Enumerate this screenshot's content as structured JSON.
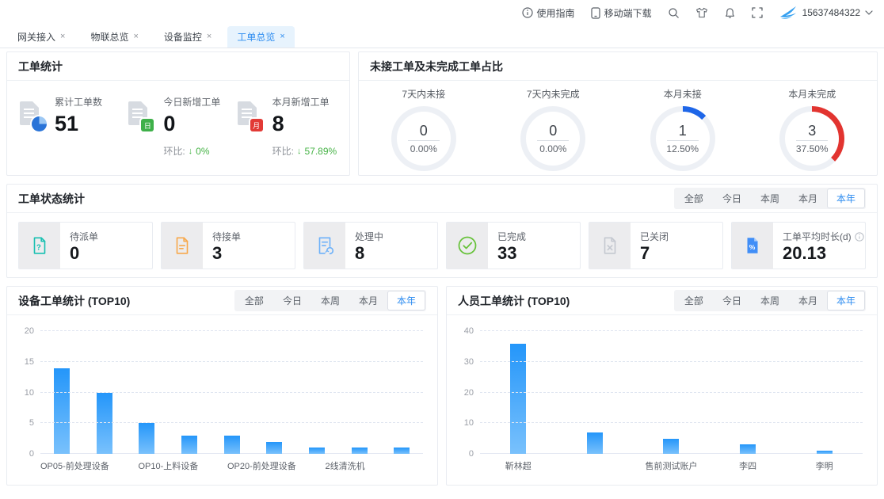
{
  "topbar": {
    "guide_label": "使用指南",
    "download_label": "移动端下载",
    "account": "15637484322",
    "icons": [
      "info-icon",
      "phone-icon",
      "search-icon",
      "theme-shirt-icon",
      "bell-icon",
      "fullscreen-icon",
      "brand-swallow-logo",
      "chevron-down-icon"
    ],
    "brand_color": "#35a0f0"
  },
  "tabbar": {
    "tabs": [
      {
        "label": "网关接入"
      },
      {
        "label": "物联总览"
      },
      {
        "label": "设备监控"
      },
      {
        "label": "工单总览"
      }
    ],
    "active_index": 3,
    "close_glyph": "×"
  },
  "filters": {
    "options": [
      "全部",
      "今日",
      "本周",
      "本月",
      "本年"
    ],
    "active": "本年"
  },
  "work_order_stats": {
    "title": "工单统计",
    "items": [
      {
        "label": "累计工单数",
        "value": "51"
      },
      {
        "label": "今日新增工单",
        "value": "0",
        "mom_label": "环比:",
        "mom_arrow": "↓",
        "mom_value": "0%"
      },
      {
        "label": "本月新增工单",
        "value": "8",
        "mom_label": "环比:",
        "mom_arrow": "↓",
        "mom_value": "57.89%"
      }
    ]
  },
  "ratio_panel": {
    "title": "未接工单及未完成工单占比",
    "track_color": "#edf0f5",
    "items": [
      {
        "label": "7天内未接",
        "value": "0",
        "percent": "0.00%",
        "pct": 0,
        "color": "#1e66e8"
      },
      {
        "label": "7天内未完成",
        "value": "0",
        "percent": "0.00%",
        "pct": 0,
        "color": "#1e66e8"
      },
      {
        "label": "本月未接",
        "value": "1",
        "percent": "12.50%",
        "pct": 12.5,
        "color": "#1e66e8"
      },
      {
        "label": "本月未完成",
        "value": "3",
        "percent": "37.50%",
        "pct": 37.5,
        "color": "#e23430"
      }
    ]
  },
  "status_panel": {
    "title": "工单状态统计",
    "cards": [
      {
        "label": "待派单",
        "value": "0",
        "icon": "doc-question-icon",
        "color": "#17c0b1"
      },
      {
        "label": "待接单",
        "value": "3",
        "icon": "doc-lines-icon",
        "color": "#f7a84b"
      },
      {
        "label": "处理中",
        "value": "8",
        "icon": "doc-refresh-icon",
        "color": "#6db1f9"
      },
      {
        "label": "已完成",
        "value": "33",
        "icon": "check-circle-icon",
        "color": "#67c23a"
      },
      {
        "label": "已关闭",
        "value": "7",
        "icon": "doc-x-icon",
        "color": "#c4c8d0"
      },
      {
        "label": "工单平均时长(d)",
        "value": "20.13",
        "icon": "doc-percent-icon",
        "color": "#418ef7",
        "info": true
      }
    ]
  },
  "chart_data": [
    {
      "type": "bar",
      "title": "设备工单统计 (TOP10)",
      "categories": [
        "OP05-前处理设备",
        "",
        "OP10-上料设备",
        "",
        "OP20-前处理设备",
        "",
        "2线清洗机",
        "",
        ""
      ],
      "values": [
        14,
        10,
        5,
        3,
        3,
        2,
        1,
        1,
        1
      ],
      "ylim": [
        0,
        20
      ],
      "yticks": [
        0,
        5,
        10,
        15,
        20
      ],
      "grid": "dashed-horizontal",
      "legend": "none",
      "bar_gradient": [
        "#2496fa",
        "#79c1fc"
      ],
      "filters": [
        "全部",
        "今日",
        "本周",
        "本月",
        "本年"
      ],
      "active_filter": "本年"
    },
    {
      "type": "bar",
      "title": "人员工单统计 (TOP10)",
      "categories": [
        "靳林超",
        "",
        "售前测试账户",
        "李四",
        "李明"
      ],
      "values": [
        36,
        7,
        5,
        3,
        1
      ],
      "ylim": [
        0,
        40
      ],
      "yticks": [
        0,
        10,
        20,
        30,
        40
      ],
      "grid": "dashed-horizontal",
      "legend": "none",
      "bar_gradient": [
        "#2496fa",
        "#79c1fc"
      ],
      "filters": [
        "全部",
        "今日",
        "本周",
        "本月",
        "本年"
      ],
      "active_filter": "本年"
    }
  ]
}
